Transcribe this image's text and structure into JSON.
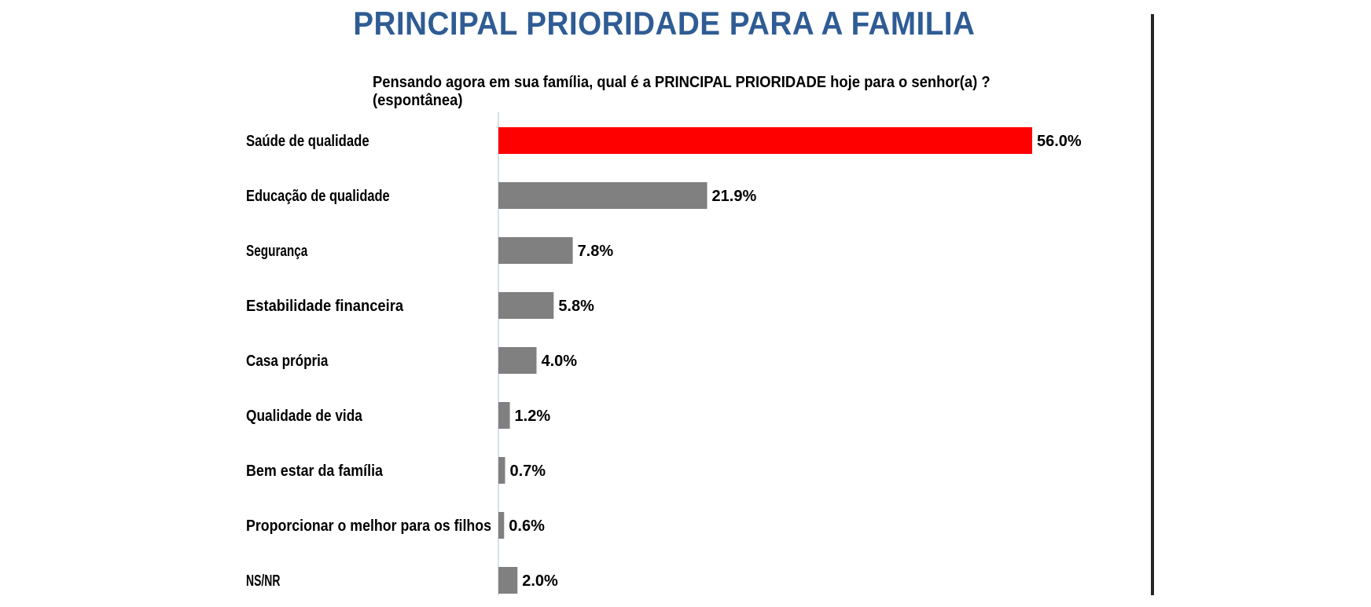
{
  "title": "PRINCIPAL PRIORIDADE PARA A FAMILIA",
  "subtitle": "Pensando agora em sua família, qual é a PRINCIPAL PRIORIDADE hoje para o senhor(a) ? (espontânea)",
  "colors": {
    "highlight": "#ff0000",
    "bar": "#808080",
    "title": "#2f5c94"
  },
  "chart_data": {
    "type": "bar",
    "orientation": "horizontal",
    "title": "PRINCIPAL PRIORIDADE PARA A FAMILIA",
    "subtitle": "Pensando agora em sua família, qual é a PRINCIPAL PRIORIDADE hoje para o senhor(a) ? (espontânea)",
    "categories": [
      "Saúde de qualidade",
      "Educação de qualidade",
      "Segurança",
      "Estabilidade financeira",
      "Casa própria",
      "Qualidade de vida",
      "Bem estar da família",
      "Proporcionar o melhor para os filhos",
      "NS/NR"
    ],
    "values": [
      56.0,
      21.9,
      7.8,
      5.8,
      4.0,
      1.2,
      0.7,
      0.6,
      2.0
    ],
    "value_labels": [
      "56.0%",
      "21.9%",
      "7.8%",
      "5.8%",
      "4.0%",
      "1.2%",
      "0.7%",
      "0.6%",
      "2.0%"
    ],
    "unit": "%",
    "xlabel": "",
    "ylabel": "",
    "xlim": [
      0,
      56.0
    ],
    "grid": false,
    "legend": "none",
    "highlighted_category": "Saúde de qualidade"
  }
}
